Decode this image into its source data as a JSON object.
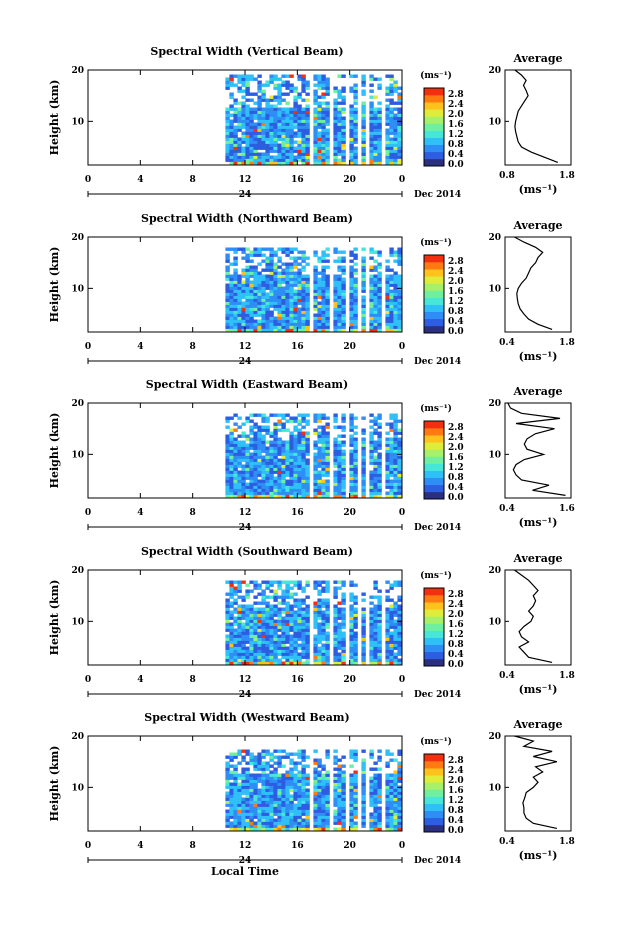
{
  "colors": {
    "colorbar": [
      "#2a2f80",
      "#2d5de0",
      "#2f8ef5",
      "#2fc0f8",
      "#46e6d8",
      "#6ef0a0",
      "#a6f06a",
      "#e0ec3a",
      "#ffc21c",
      "#ff7a10",
      "#f23010"
    ],
    "low_bin": "#2a2f80",
    "axis": "#000000"
  },
  "common": {
    "y_label": "Height (km)",
    "x_ticks": [
      "0",
      "4",
      "8",
      "12",
      "16",
      "20",
      "0"
    ],
    "date_tick": "24",
    "date_label": "Dec 2014",
    "x_label": "Local Time",
    "cb_unit": "(ms⁻¹)",
    "cb_ticks": [
      "2.8",
      "2.4",
      "2.0",
      "1.6",
      "1.2",
      "0.8",
      "0.4",
      "0.0"
    ],
    "avg_title": "Average",
    "avg_unit": "(ms⁻¹)",
    "y_ticks": [
      "20",
      "10"
    ]
  },
  "chart_data": [
    {
      "type": "heatmap",
      "title": "Spectral Width (Vertical Beam)",
      "xlim": [
        0,
        24
      ],
      "ylim": [
        1.5,
        20
      ],
      "data_start_hour": 10.5,
      "gaps_hours": [
        [
          16.7,
          17.0
        ],
        [
          18.3,
          18.6
        ],
        [
          19.4,
          19.7
        ],
        [
          20.3,
          20.6
        ],
        [
          21.2,
          21.5
        ],
        [
          22.4,
          22.7
        ]
      ],
      "top_km": 19.5,
      "profile": {
        "type": "line",
        "xlim": [
          0.8,
          1.8
        ],
        "x_ticks": [
          "0.8",
          "1.8"
        ],
        "y": [
          2,
          3,
          4,
          5,
          6,
          7,
          8,
          9,
          10,
          11,
          12,
          13,
          14,
          15,
          16,
          17,
          18,
          19,
          20
        ],
        "x": [
          1.6,
          1.4,
          1.2,
          1.05,
          1.0,
          0.98,
          0.96,
          0.95,
          0.96,
          0.98,
          1.0,
          1.05,
          1.1,
          1.15,
          1.12,
          1.08,
          1.12,
          1.05,
          0.95
        ]
      }
    },
    {
      "type": "heatmap",
      "title": "Spectral Width (Northward Beam)",
      "xlim": [
        0,
        24
      ],
      "ylim": [
        1.5,
        20
      ],
      "data_start_hour": 10.5,
      "gaps_hours": [
        [
          16.7,
          17.0
        ],
        [
          18.3,
          18.6
        ],
        [
          19.4,
          19.7
        ],
        [
          20.3,
          20.6
        ],
        [
          21.2,
          21.5
        ],
        [
          22.4,
          22.7
        ]
      ],
      "top_km": 18.5,
      "profile": {
        "type": "line",
        "xlim": [
          0.4,
          1.8
        ],
        "x_ticks": [
          "0.4",
          "1.8"
        ],
        "y": [
          2,
          3,
          4,
          5,
          6,
          7,
          8,
          9,
          10,
          11,
          12,
          13,
          14,
          15,
          16,
          17,
          18,
          19,
          20
        ],
        "x": [
          1.4,
          1.1,
          0.9,
          0.8,
          0.72,
          0.68,
          0.66,
          0.65,
          0.68,
          0.75,
          0.85,
          0.9,
          0.95,
          1.05,
          1.1,
          1.2,
          1.05,
          0.8,
          0.6
        ]
      }
    },
    {
      "type": "heatmap",
      "title": "Spectral Width (Eastward Beam)",
      "xlim": [
        0,
        24
      ],
      "ylim": [
        1.5,
        20
      ],
      "data_start_hour": 10.5,
      "gaps_hours": [
        [
          16.7,
          17.0
        ],
        [
          18.3,
          18.6
        ],
        [
          19.4,
          19.7
        ],
        [
          20.3,
          20.6
        ],
        [
          21.2,
          21.5
        ],
        [
          22.4,
          22.7
        ]
      ],
      "top_km": 18.5,
      "profile": {
        "type": "line",
        "xlim": [
          0.4,
          1.6
        ],
        "x_ticks": [
          "0.4",
          "1.6"
        ],
        "y": [
          2,
          3,
          4,
          5,
          6,
          7,
          8,
          9,
          10,
          11,
          12,
          13,
          14,
          15,
          16,
          17,
          18,
          19,
          20
        ],
        "x": [
          1.5,
          0.9,
          1.2,
          0.7,
          0.6,
          0.55,
          0.6,
          0.75,
          1.1,
          0.8,
          0.75,
          0.8,
          0.95,
          1.3,
          0.6,
          1.4,
          0.7,
          0.5,
          0.45
        ]
      }
    },
    {
      "type": "heatmap",
      "title": "Spectral Width (Southward Beam)",
      "xlim": [
        0,
        24
      ],
      "ylim": [
        1.5,
        20
      ],
      "data_start_hour": 10.5,
      "gaps_hours": [
        [
          16.7,
          17.0
        ],
        [
          18.3,
          18.6
        ],
        [
          19.4,
          19.7
        ],
        [
          20.3,
          20.6
        ],
        [
          21.2,
          21.5
        ],
        [
          22.4,
          22.7
        ]
      ],
      "top_km": 18.5,
      "profile": {
        "type": "line",
        "xlim": [
          0.4,
          1.8
        ],
        "x_ticks": [
          "0.4",
          "1.8"
        ],
        "y": [
          2,
          3,
          4,
          5,
          6,
          7,
          8,
          9,
          10,
          11,
          12,
          13,
          14,
          15,
          16,
          17,
          18,
          19,
          20
        ],
        "x": [
          1.4,
          0.9,
          0.8,
          0.7,
          0.9,
          0.75,
          0.7,
          0.8,
          0.95,
          1.0,
          0.9,
          1.0,
          1.05,
          1.0,
          1.1,
          1.0,
          0.9,
          0.75,
          0.6
        ]
      }
    },
    {
      "type": "heatmap",
      "title": "Spectral Width (Westward Beam)",
      "xlim": [
        0,
        24
      ],
      "ylim": [
        1.5,
        20
      ],
      "data_start_hour": 10.5,
      "gaps_hours": [
        [
          16.7,
          17.0
        ],
        [
          18.3,
          18.6
        ],
        [
          19.4,
          19.7
        ],
        [
          20.3,
          20.6
        ],
        [
          21.2,
          21.5
        ],
        [
          22.4,
          22.7
        ]
      ],
      "top_km": 17.5,
      "profile": {
        "type": "line",
        "xlim": [
          0.4,
          1.8
        ],
        "x_ticks": [
          "0.4",
          "1.8"
        ],
        "y": [
          2,
          3,
          4,
          5,
          6,
          7,
          8,
          9,
          10,
          11,
          12,
          13,
          14,
          15,
          16,
          17,
          18,
          19,
          20
        ],
        "x": [
          1.5,
          1.0,
          0.85,
          0.8,
          0.8,
          0.78,
          0.82,
          0.85,
          1.0,
          1.1,
          1.0,
          1.2,
          1.05,
          1.5,
          1.0,
          1.4,
          0.8,
          1.0,
          0.6
        ]
      }
    }
  ]
}
